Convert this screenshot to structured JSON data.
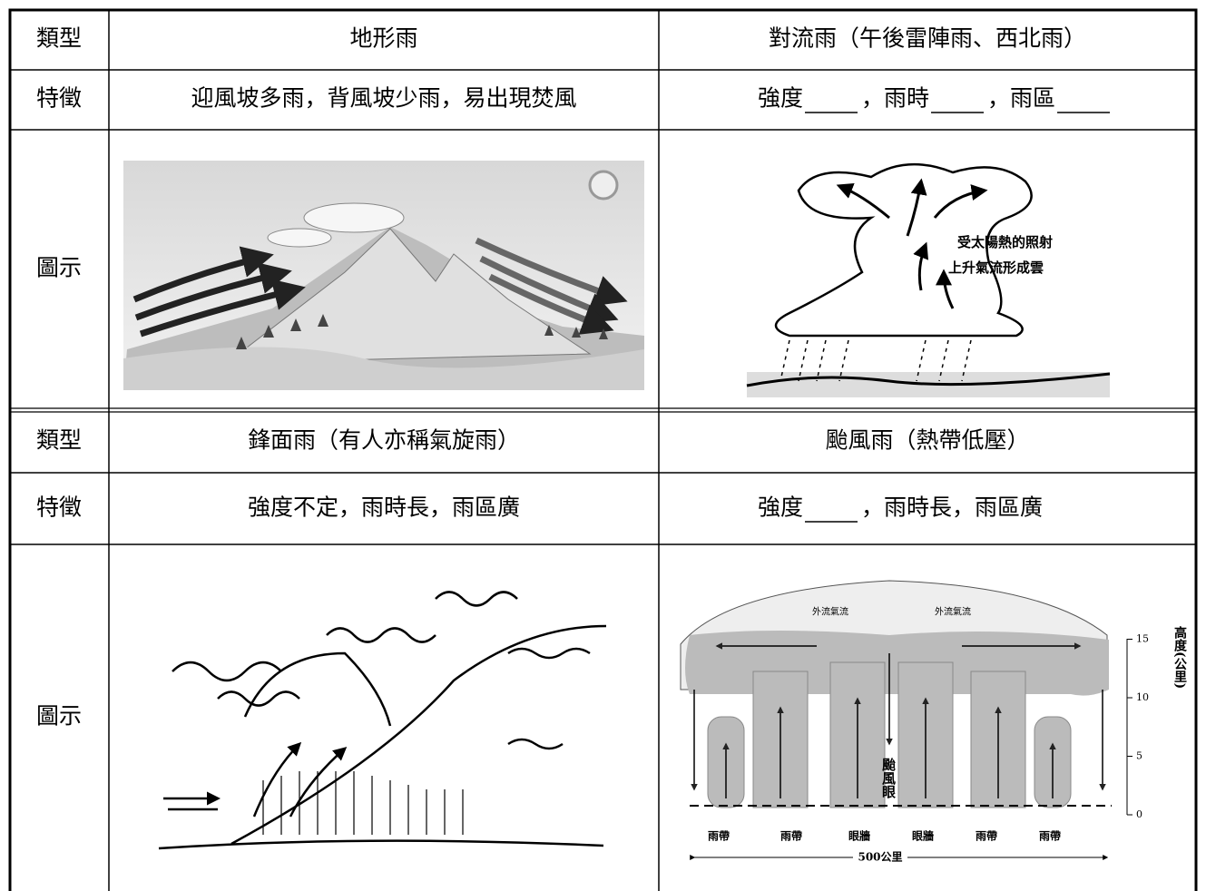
{
  "table": {
    "rows": [
      [
        "類型",
        "地形雨",
        "對流雨（午後雷陣雨、西北雨）"
      ],
      [
        "特徵",
        "迎風坡多雨，背風坡少雨，易出現焚風",
        [
          "強度",
          "，雨時",
          "，雨區"
        ]
      ],
      [
        "圖示"
      ],
      [
        "類型",
        "鋒面雨（有人亦稱氣旋雨）",
        "颱風雨（熱帶低壓）"
      ],
      [
        "特徵",
        "強度不定，雨時長，雨區廣",
        [
          "強度",
          "，雨時長，雨區廣"
        ]
      ],
      [
        "圖示"
      ]
    ]
  },
  "figures": {
    "convection": {
      "caption_lines": [
        "受太陽熱的照射",
        "上升氣流形成雲"
      ]
    },
    "typhoon": {
      "outflow": [
        "外流氣流",
        "外流氣流"
      ],
      "eye": "颱風眼",
      "bands": [
        "雨帶",
        "雨帶",
        "眼牆",
        "眼牆",
        "雨帶",
        "雨帶"
      ],
      "width": "500公里",
      "height_label": "高度(公里)",
      "height_ticks": [
        15,
        10,
        5,
        0
      ]
    }
  }
}
